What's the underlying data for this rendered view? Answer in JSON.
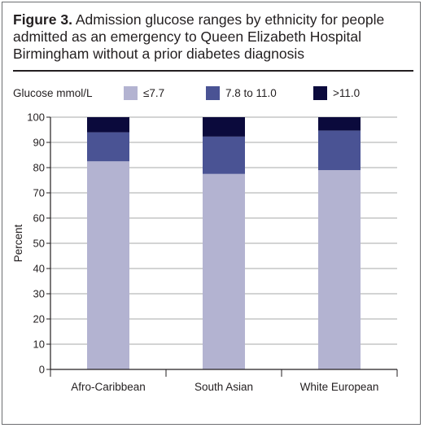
{
  "figure": {
    "label": "Figure 3.",
    "title": "Admission glucose ranges by ethnicity for people admitted as an emergency to Queen Elizabeth Hospital Birmingham without a prior diabetes diagnosis"
  },
  "legend": {
    "title": "Glucose mmol/L"
  },
  "colors": {
    "low": "#b3b3d1",
    "mid": "#4a5394",
    "high": "#0b0a3c",
    "axis": "#231f20",
    "grid": "#8a8c8e"
  },
  "chart_data": {
    "type": "bar",
    "stacked": true,
    "categories": [
      "Afro-Caribbean",
      "South Asian",
      "White European"
    ],
    "series": [
      {
        "name": "≤7.7",
        "values": [
          82.5,
          77.5,
          79
        ]
      },
      {
        "name": "7.8 to 11.0",
        "values": [
          11.5,
          14.8,
          15.7
        ]
      },
      {
        "name": ">11.0",
        "values": [
          6,
          7.7,
          5.3
        ]
      }
    ],
    "title": "",
    "xlabel": "",
    "ylabel": "Percent",
    "ylim": [
      0,
      100
    ],
    "yticks": [
      0,
      10,
      20,
      30,
      40,
      50,
      60,
      70,
      80,
      90,
      100
    ],
    "grid": true,
    "legend_position": "top"
  }
}
